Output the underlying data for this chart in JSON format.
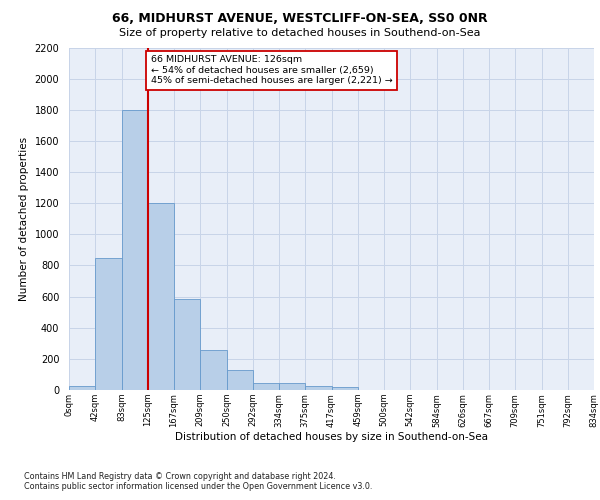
{
  "title1": "66, MIDHURST AVENUE, WESTCLIFF-ON-SEA, SS0 0NR",
  "title2": "Size of property relative to detached houses in Southend-on-Sea",
  "xlabel": "Distribution of detached houses by size in Southend-on-Sea",
  "ylabel": "Number of detached properties",
  "bin_labels": [
    "0sqm",
    "42sqm",
    "83sqm",
    "125sqm",
    "167sqm",
    "209sqm",
    "250sqm",
    "292sqm",
    "334sqm",
    "375sqm",
    "417sqm",
    "459sqm",
    "500sqm",
    "542sqm",
    "584sqm",
    "626sqm",
    "667sqm",
    "709sqm",
    "751sqm",
    "792sqm",
    "834sqm"
  ],
  "bar_heights": [
    25,
    850,
    1800,
    1200,
    585,
    255,
    130,
    45,
    45,
    28,
    20,
    0,
    0,
    0,
    0,
    0,
    0,
    0,
    0,
    0
  ],
  "bar_color": "#b8cfe8",
  "bar_edge_color": "#6699cc",
  "grid_color": "#c8d4e8",
  "background_color": "#e8eef8",
  "vline_color": "#cc0000",
  "annotation_text": "66 MIDHURST AVENUE: 126sqm\n← 54% of detached houses are smaller (2,659)\n45% of semi-detached houses are larger (2,221) →",
  "annotation_box_color": "#ffffff",
  "annotation_box_edge": "#cc0000",
  "footnote": "Contains HM Land Registry data © Crown copyright and database right 2024.\nContains public sector information licensed under the Open Government Licence v3.0.",
  "ylim": [
    0,
    2200
  ],
  "yticks": [
    0,
    200,
    400,
    600,
    800,
    1000,
    1200,
    1400,
    1600,
    1800,
    2000,
    2200
  ]
}
